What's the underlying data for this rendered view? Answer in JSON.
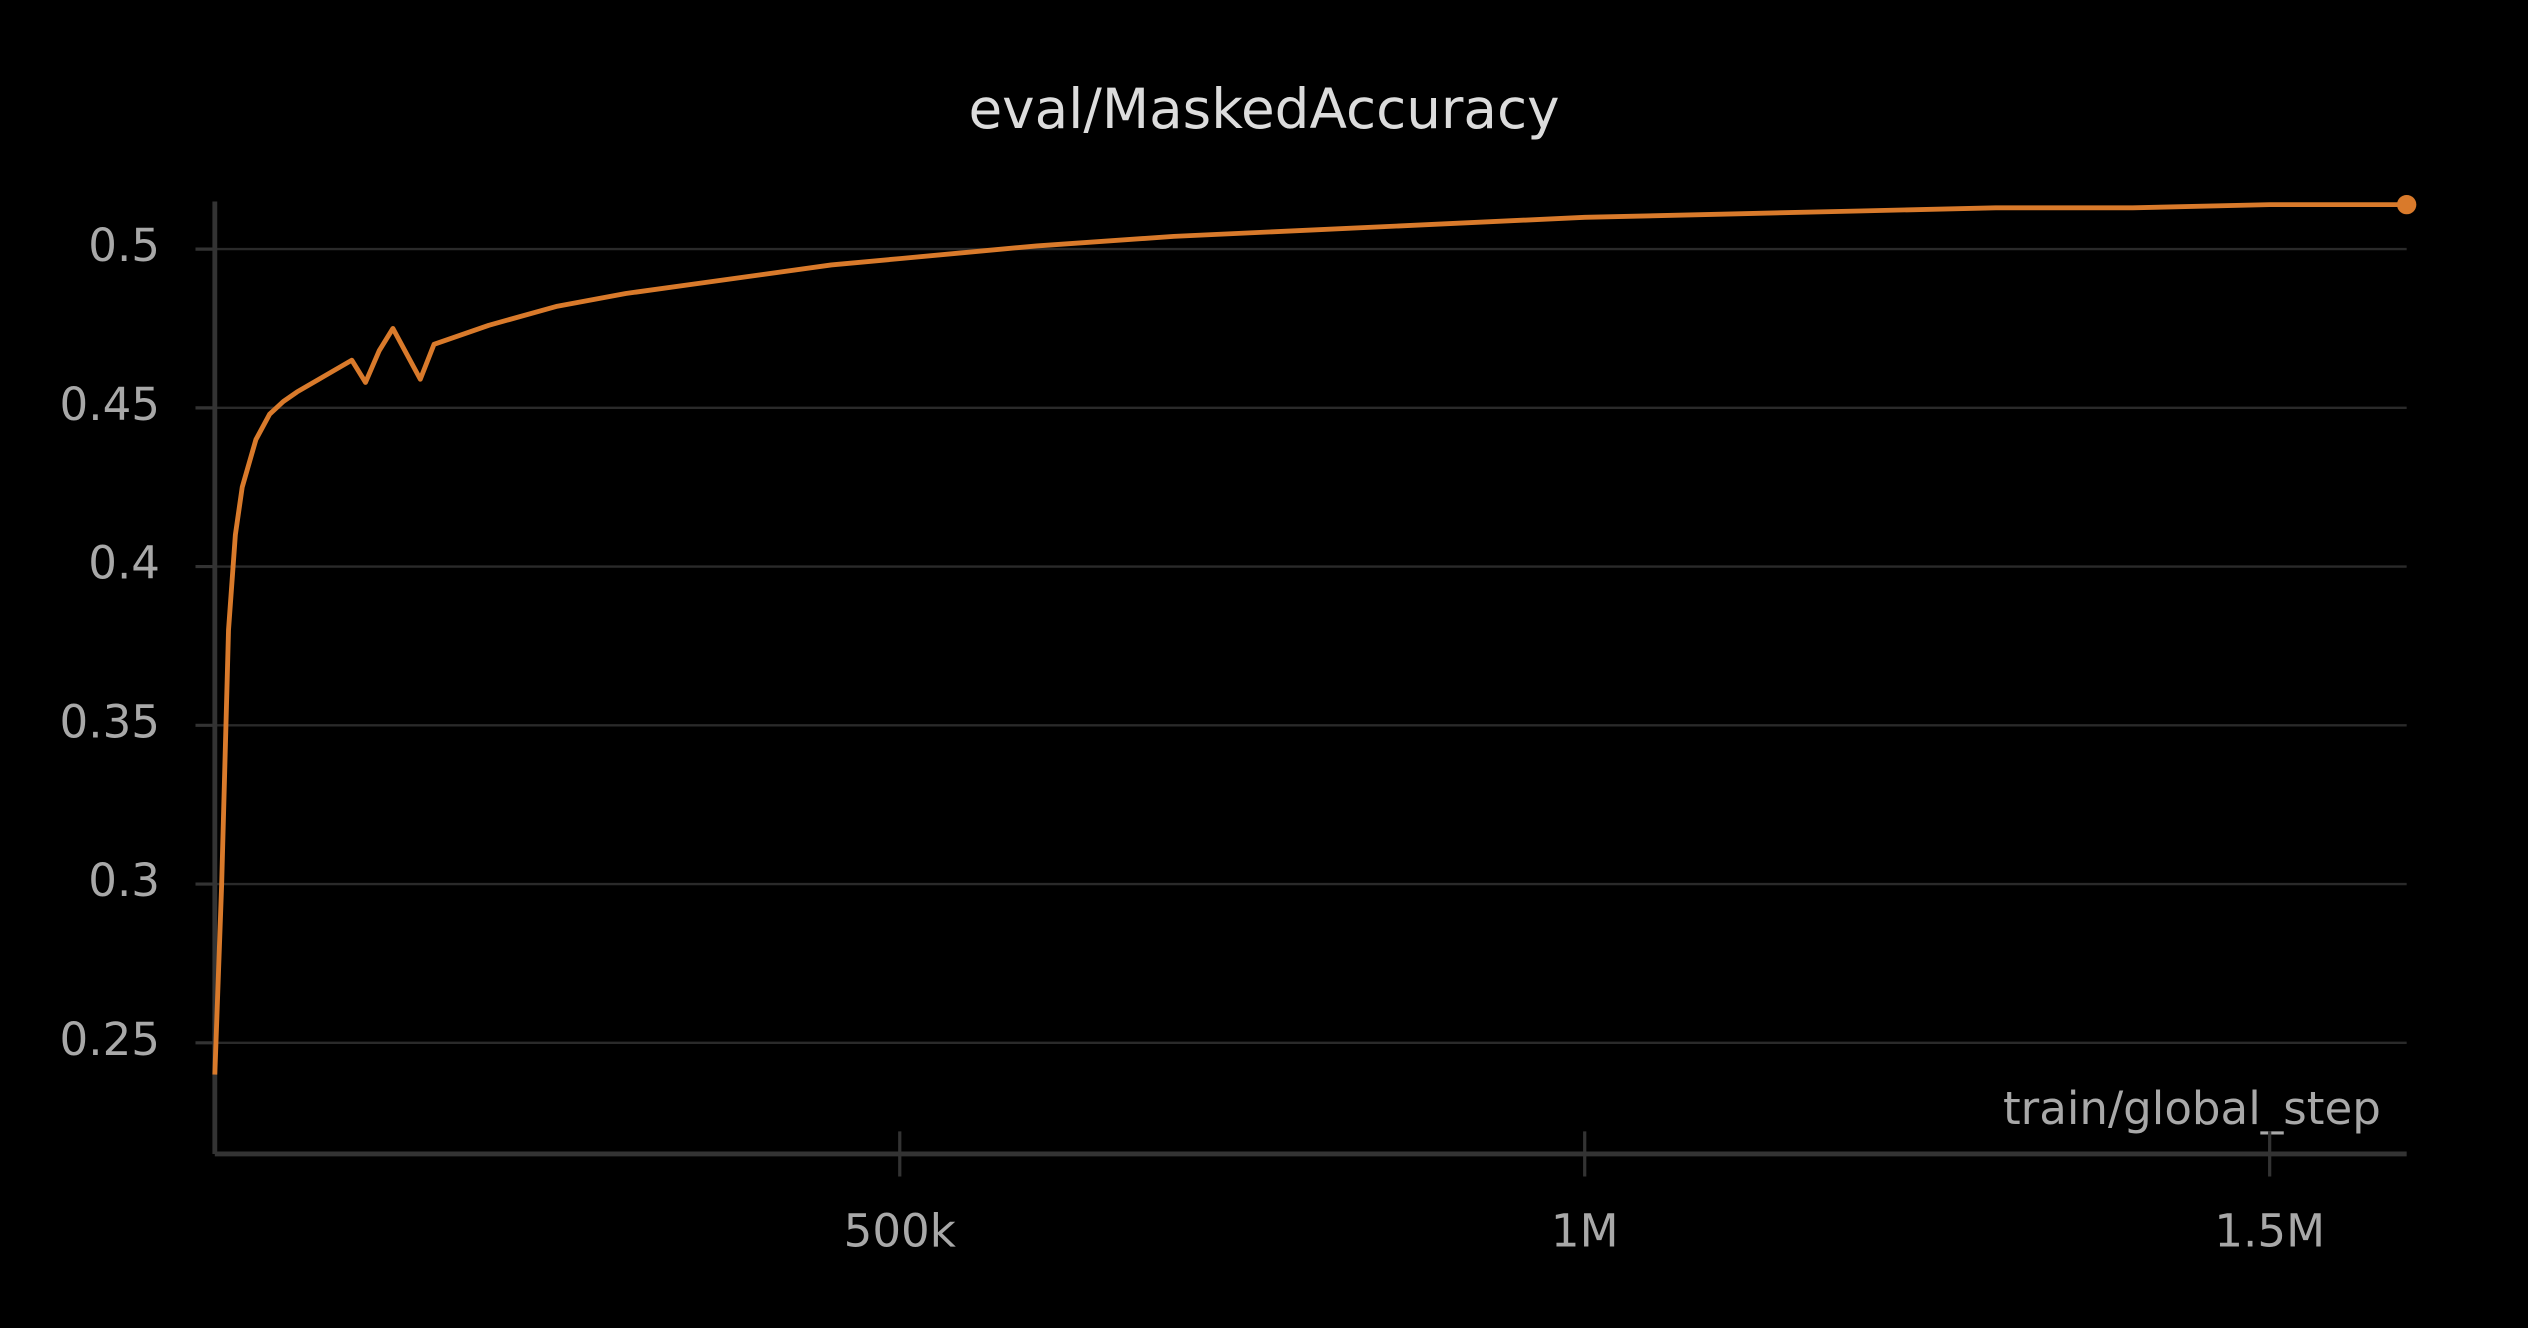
{
  "chart_data": {
    "type": "line",
    "title": "eval/MaskedAccuracy",
    "x_label": "train/global_step",
    "color": "#d97a2b",
    "grid": true,
    "x": [
      0,
      5000,
      10000,
      15000,
      20000,
      30000,
      40000,
      50000,
      60000,
      80000,
      100000,
      110000,
      120000,
      130000,
      150000,
      160000,
      180000,
      200000,
      250000,
      300000,
      350000,
      400000,
      450000,
      500000,
      600000,
      700000,
      800000,
      900000,
      1000000,
      1100000,
      1200000,
      1300000,
      1400000,
      1500000,
      1600000
    ],
    "values": [
      0.24,
      0.3,
      0.38,
      0.41,
      0.425,
      0.44,
      0.448,
      0.452,
      0.455,
      0.46,
      0.465,
      0.458,
      0.468,
      0.475,
      0.459,
      0.47,
      0.473,
      0.476,
      0.482,
      0.486,
      0.489,
      0.492,
      0.495,
      0.497,
      0.501,
      0.504,
      0.506,
      0.508,
      0.51,
      0.511,
      0.512,
      0.513,
      0.513,
      0.514,
      0.514
    ],
    "xlim": [
      0,
      1600000
    ],
    "ylim": [
      0.215,
      0.515
    ],
    "xticks": [
      {
        "value": 500000,
        "label": "500k"
      },
      {
        "value": 1000000,
        "label": "1M"
      },
      {
        "value": 1500000,
        "label": "1.5M"
      }
    ],
    "yticks": [
      0.25,
      0.3,
      0.35,
      0.4,
      0.45,
      0.5
    ]
  }
}
